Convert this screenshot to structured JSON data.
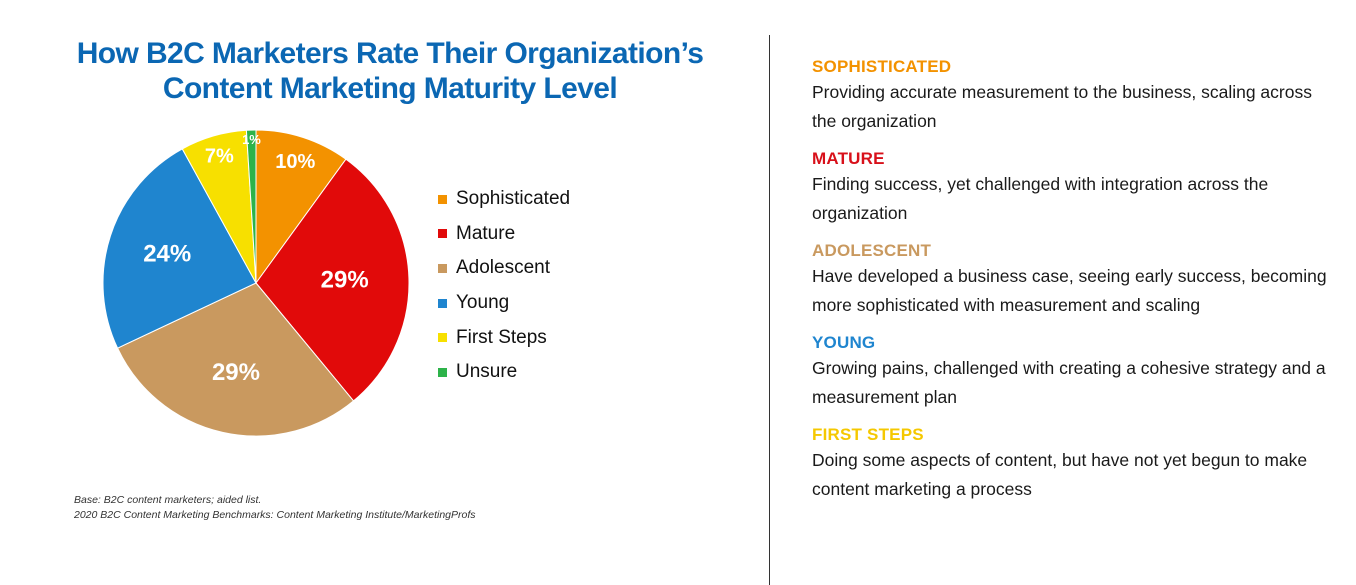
{
  "title_lines": [
    "How B2C Marketers Rate Their Organization’s",
    "Content Marketing Maturity Level"
  ],
  "chart_data": {
    "type": "pie",
    "title": "How B2C Marketers Rate Their Organization’s Content Marketing Maturity Level",
    "legend_position": "right",
    "slices": [
      {
        "label": "Sophisticated",
        "value": 10,
        "display": "10%",
        "color": "#f39200"
      },
      {
        "label": "Mature",
        "value": 29,
        "display": "29%",
        "color": "#e10a0a"
      },
      {
        "label": "Adolescent",
        "value": 29,
        "display": "29%",
        "color": "#c9995f"
      },
      {
        "label": "Young",
        "value": 24,
        "display": "24%",
        "color": "#1f85cf"
      },
      {
        "label": "First Steps",
        "value": 7,
        "display": "7%",
        "color": "#f7e000"
      },
      {
        "label": "Unsure",
        "value": 1,
        "display": "1%",
        "color": "#2db34a"
      }
    ]
  },
  "source": {
    "line1": "Base: B2C content marketers; aided list.",
    "line2": "2020 B2C Content Marketing Benchmarks: Content Marketing Institute/MarketingProfs"
  },
  "definitions": [
    {
      "title": "SOPHISTICATED",
      "color": "#f39200",
      "text": "Providing accurate measurement to the business, scaling across the organization"
    },
    {
      "title": "MATURE",
      "color": "#d8101a",
      "text": "Finding success, yet challenged with integration across the organization"
    },
    {
      "title": "ADOLESCENT",
      "color": "#c9995f",
      "text": "Have developed a business case, seeing early success, becoming more sophisticated with measurement and scaling"
    },
    {
      "title": "YOUNG",
      "color": "#1f85cf",
      "text": "Growing pains, challenged with creating a cohesive strategy and a measurement plan"
    },
    {
      "title": "FIRST STEPS",
      "color": "#f5c800",
      "text": "Doing some aspects of content, but have not yet begun to make content marketing a process"
    }
  ]
}
